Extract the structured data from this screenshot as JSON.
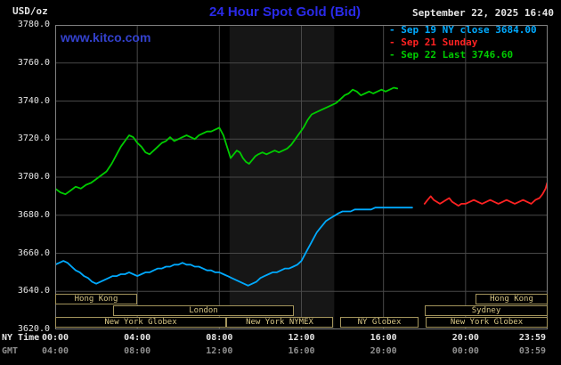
{
  "header": {
    "title": "24 Hour Spot Gold (Bid)",
    "datetime": "September 22, 2025 16:40",
    "watermark": "www.kitco.com",
    "units_label": "USD/oz"
  },
  "legend": {
    "items": [
      {
        "label": "Sep 19 NY close 3684.00",
        "color": "#00aaff"
      },
      {
        "label": "Sep 21 Sunday",
        "color": "#ff2222"
      },
      {
        "label": "Sep 22 Last 3746.60",
        "color": "#00cc00"
      }
    ]
  },
  "axes": {
    "x_rows": [
      {
        "caption": "NY Time",
        "labels": [
          "00:00",
          "04:00",
          "08:00",
          "12:00",
          "16:00",
          "20:00",
          "23:59"
        ],
        "color": "#e6e6e6"
      },
      {
        "caption": "GMT",
        "labels": [
          "04:00",
          "08:00",
          "12:00",
          "16:00",
          "20:00",
          "00:00",
          "03:59"
        ],
        "color": "#909090"
      }
    ]
  },
  "sessions": {
    "boxes": [
      {
        "label": "Hong Kong",
        "row": 0,
        "start": 0,
        "end": 4.0
      },
      {
        "label": "Hong Kong",
        "row": 0,
        "start": 20.5,
        "end": 24
      },
      {
        "label": "London",
        "row": 1,
        "start": 2.8,
        "end": 11.6
      },
      {
        "label": "Sydney",
        "row": 1,
        "start": 18.0,
        "end": 24
      },
      {
        "label": "New York Globex",
        "row": 2,
        "start": 0,
        "end": 8.35
      },
      {
        "label": "New York NYMEX",
        "row": 2,
        "start": 8.35,
        "end": 13.55
      },
      {
        "label": "NY Globex",
        "row": 2,
        "start": 13.9,
        "end": 17.7
      },
      {
        "label": "New York Globex",
        "row": 2,
        "start": 18.05,
        "end": 24
      }
    ]
  },
  "chart_data": {
    "type": "line",
    "title": "24 Hour Spot Gold (Bid)",
    "ylabel": "USD/oz",
    "xlabel": "NY Time",
    "ylim": [
      3620,
      3780
    ],
    "ytick_step": 20,
    "yticks": [
      3780,
      3760,
      3740,
      3720,
      3700,
      3680,
      3660,
      3640,
      3620
    ],
    "ytick_labels": [
      "3780.0",
      "3760.0",
      "3740.0",
      "3720.0",
      "3700.0",
      "3680.0",
      "3660.0",
      "3640.0",
      "3620.0"
    ],
    "xlim_hours": [
      0,
      24
    ],
    "xticks_hours": [
      0,
      4,
      8,
      12,
      16,
      20,
      24
    ],
    "grid": true,
    "grid_color": "#484848",
    "background": "#000000",
    "legend_position": "top-right",
    "session_band": {
      "start_hour": 8.5,
      "end_hour": 13.6,
      "color": "#161616"
    },
    "series": [
      {
        "id": "sep19",
        "name": "Sep 19 NY close 3684.00",
        "color": "#00aaff",
        "points": [
          [
            0,
            3654
          ],
          [
            0.2,
            3655
          ],
          [
            0.4,
            3656
          ],
          [
            0.6,
            3655
          ],
          [
            0.8,
            3653
          ],
          [
            1,
            3651
          ],
          [
            1.2,
            3650
          ],
          [
            1.4,
            3648
          ],
          [
            1.6,
            3647
          ],
          [
            1.8,
            3645
          ],
          [
            2,
            3644
          ],
          [
            2.2,
            3645
          ],
          [
            2.4,
            3646
          ],
          [
            2.6,
            3647
          ],
          [
            2.8,
            3648
          ],
          [
            3,
            3648
          ],
          [
            3.2,
            3649
          ],
          [
            3.4,
            3649
          ],
          [
            3.6,
            3650
          ],
          [
            3.8,
            3649
          ],
          [
            4,
            3648
          ],
          [
            4.2,
            3649
          ],
          [
            4.4,
            3650
          ],
          [
            4.6,
            3650
          ],
          [
            4.8,
            3651
          ],
          [
            5,
            3652
          ],
          [
            5.2,
            3652
          ],
          [
            5.4,
            3653
          ],
          [
            5.6,
            3653
          ],
          [
            5.8,
            3654
          ],
          [
            6,
            3654
          ],
          [
            6.2,
            3655
          ],
          [
            6.4,
            3654
          ],
          [
            6.6,
            3654
          ],
          [
            6.8,
            3653
          ],
          [
            7,
            3653
          ],
          [
            7.2,
            3652
          ],
          [
            7.4,
            3651
          ],
          [
            7.6,
            3651
          ],
          [
            7.8,
            3650
          ],
          [
            8,
            3650
          ],
          [
            8.2,
            3649
          ],
          [
            8.4,
            3648
          ],
          [
            8.6,
            3647
          ],
          [
            8.8,
            3646
          ],
          [
            9,
            3645
          ],
          [
            9.2,
            3644
          ],
          [
            9.4,
            3643
          ],
          [
            9.6,
            3644
          ],
          [
            9.8,
            3645
          ],
          [
            10,
            3647
          ],
          [
            10.2,
            3648
          ],
          [
            10.4,
            3649
          ],
          [
            10.6,
            3650
          ],
          [
            10.8,
            3650
          ],
          [
            11,
            3651
          ],
          [
            11.2,
            3652
          ],
          [
            11.4,
            3652
          ],
          [
            11.6,
            3653
          ],
          [
            11.8,
            3654
          ],
          [
            12,
            3656
          ],
          [
            12.15,
            3659
          ],
          [
            12.3,
            3662
          ],
          [
            12.45,
            3665
          ],
          [
            12.6,
            3668
          ],
          [
            12.75,
            3671
          ],
          [
            12.9,
            3673
          ],
          [
            13.05,
            3675
          ],
          [
            13.2,
            3677
          ],
          [
            13.35,
            3678
          ],
          [
            13.5,
            3679
          ],
          [
            13.65,
            3680
          ],
          [
            13.8,
            3681
          ],
          [
            14,
            3682
          ],
          [
            14.2,
            3682
          ],
          [
            14.4,
            3682
          ],
          [
            14.6,
            3683
          ],
          [
            14.8,
            3683
          ],
          [
            15,
            3683
          ],
          [
            15.2,
            3683
          ],
          [
            15.4,
            3683
          ],
          [
            15.6,
            3684
          ],
          [
            15.8,
            3684
          ],
          [
            16,
            3684
          ],
          [
            16.3,
            3684
          ],
          [
            16.6,
            3684
          ],
          [
            16.9,
            3684
          ],
          [
            17.2,
            3684
          ],
          [
            17.4,
            3684
          ]
        ]
      },
      {
        "id": "sep21",
        "name": "Sep 21 Sunday",
        "color": "#ff2222",
        "points": [
          [
            18,
            3686
          ],
          [
            18.15,
            3688
          ],
          [
            18.3,
            3690
          ],
          [
            18.45,
            3688
          ],
          [
            18.6,
            3687
          ],
          [
            18.75,
            3686
          ],
          [
            18.9,
            3687
          ],
          [
            19.05,
            3688
          ],
          [
            19.2,
            3689
          ],
          [
            19.35,
            3687
          ],
          [
            19.5,
            3686
          ],
          [
            19.65,
            3685
          ],
          [
            19.8,
            3686
          ],
          [
            20,
            3686
          ],
          [
            20.2,
            3687
          ],
          [
            20.4,
            3688
          ],
          [
            20.6,
            3687
          ],
          [
            20.8,
            3686
          ],
          [
            21,
            3687
          ],
          [
            21.2,
            3688
          ],
          [
            21.4,
            3687
          ],
          [
            21.6,
            3686
          ],
          [
            21.8,
            3687
          ],
          [
            22,
            3688
          ],
          [
            22.2,
            3687
          ],
          [
            22.4,
            3686
          ],
          [
            22.6,
            3687
          ],
          [
            22.8,
            3688
          ],
          [
            23,
            3687
          ],
          [
            23.2,
            3686
          ],
          [
            23.4,
            3688
          ],
          [
            23.6,
            3689
          ],
          [
            23.75,
            3691
          ],
          [
            23.9,
            3694
          ],
          [
            23.98,
            3697
          ]
        ]
      },
      {
        "id": "sep22",
        "name": "Sep 22 Last 3746.60",
        "color": "#00cc00",
        "points": [
          [
            0,
            3694
          ],
          [
            0.25,
            3692
          ],
          [
            0.5,
            3691
          ],
          [
            0.75,
            3693
          ],
          [
            1,
            3695
          ],
          [
            1.25,
            3694
          ],
          [
            1.5,
            3696
          ],
          [
            1.75,
            3697
          ],
          [
            2,
            3699
          ],
          [
            2.25,
            3701
          ],
          [
            2.5,
            3703
          ],
          [
            2.75,
            3707
          ],
          [
            3,
            3712
          ],
          [
            3.2,
            3716
          ],
          [
            3.4,
            3719
          ],
          [
            3.6,
            3722
          ],
          [
            3.8,
            3721
          ],
          [
            4,
            3718
          ],
          [
            4.2,
            3716
          ],
          [
            4.4,
            3713
          ],
          [
            4.6,
            3712
          ],
          [
            4.8,
            3714
          ],
          [
            5,
            3716
          ],
          [
            5.2,
            3718
          ],
          [
            5.4,
            3719
          ],
          [
            5.6,
            3721
          ],
          [
            5.8,
            3719
          ],
          [
            6,
            3720
          ],
          [
            6.2,
            3721
          ],
          [
            6.4,
            3722
          ],
          [
            6.6,
            3721
          ],
          [
            6.8,
            3720
          ],
          [
            7,
            3722
          ],
          [
            7.2,
            3723
          ],
          [
            7.4,
            3724
          ],
          [
            7.6,
            3724
          ],
          [
            7.8,
            3725
          ],
          [
            8,
            3726
          ],
          [
            8.2,
            3722
          ],
          [
            8.4,
            3715
          ],
          [
            8.55,
            3710
          ],
          [
            8.7,
            3712
          ],
          [
            8.85,
            3714
          ],
          [
            9,
            3713
          ],
          [
            9.15,
            3710
          ],
          [
            9.3,
            3708
          ],
          [
            9.45,
            3707
          ],
          [
            9.6,
            3709
          ],
          [
            9.75,
            3711
          ],
          [
            9.9,
            3712
          ],
          [
            10.1,
            3713
          ],
          [
            10.3,
            3712
          ],
          [
            10.5,
            3713
          ],
          [
            10.7,
            3714
          ],
          [
            10.9,
            3713
          ],
          [
            11.1,
            3714
          ],
          [
            11.3,
            3715
          ],
          [
            11.5,
            3717
          ],
          [
            11.7,
            3720
          ],
          [
            11.9,
            3723
          ],
          [
            12.1,
            3726
          ],
          [
            12.3,
            3730
          ],
          [
            12.5,
            3733
          ],
          [
            12.7,
            3734
          ],
          [
            12.9,
            3735
          ],
          [
            13.1,
            3736
          ],
          [
            13.3,
            3737
          ],
          [
            13.5,
            3738
          ],
          [
            13.7,
            3739
          ],
          [
            13.9,
            3741
          ],
          [
            14.1,
            3743
          ],
          [
            14.3,
            3744
          ],
          [
            14.5,
            3746
          ],
          [
            14.7,
            3745
          ],
          [
            14.9,
            3743
          ],
          [
            15.1,
            3744
          ],
          [
            15.3,
            3745
          ],
          [
            15.5,
            3744
          ],
          [
            15.7,
            3745
          ],
          [
            15.9,
            3746
          ],
          [
            16.1,
            3745
          ],
          [
            16.3,
            3746
          ],
          [
            16.5,
            3747
          ],
          [
            16.67,
            3746.6
          ]
        ]
      }
    ]
  }
}
